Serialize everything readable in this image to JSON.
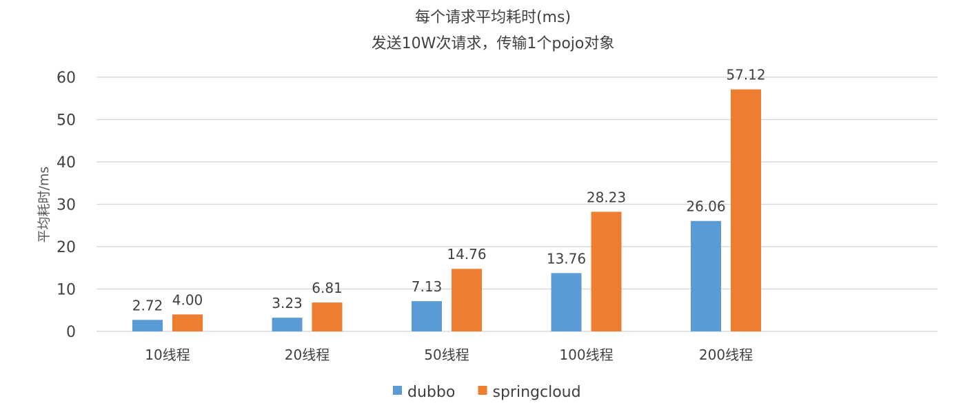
{
  "chart_data": {
    "type": "bar",
    "title": "每个请求平均耗时(ms)",
    "subtitle": "发送10W次请求，传输1个pojo对象",
    "xlabel": "",
    "ylabel": "平均耗时/ms",
    "categories": [
      "10线程",
      "20线程",
      "50线程",
      "100线程",
      "200线程"
    ],
    "series": [
      {
        "name": "dubbo",
        "color": "#5b9bd5",
        "values": [
          2.72,
          3.23,
          7.13,
          13.76,
          26.06
        ],
        "labels": [
          "2.72",
          "3.23",
          "7.13",
          "13.76",
          "26.06"
        ]
      },
      {
        "name": "springcloud",
        "color": "#ed7d31",
        "values": [
          4.0,
          6.81,
          14.76,
          28.23,
          57.12
        ],
        "labels": [
          "4.00",
          "6.81",
          "14.76",
          "28.23",
          "57.12"
        ]
      }
    ],
    "ylim": [
      0,
      60
    ],
    "yticks": [
      0,
      10,
      20,
      30,
      40,
      50,
      60
    ],
    "grid": true,
    "legend_position": "bottom"
  }
}
